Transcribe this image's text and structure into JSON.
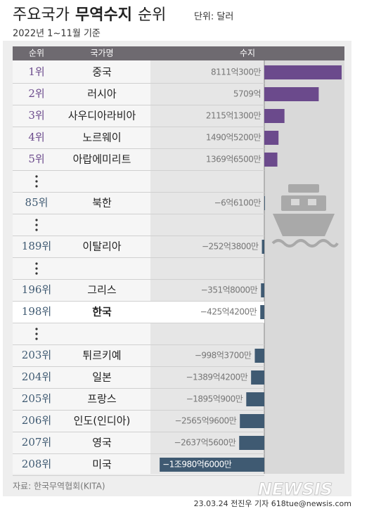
{
  "chart_data": {
    "type": "bar",
    "orientation": "horizontal",
    "title_parts": [
      "주요국가",
      "무역수지",
      "순위"
    ],
    "unit": "단위: 달러",
    "subtitle": "2022년 1~11월 기준",
    "header": [
      "순위",
      "국가명",
      "수지"
    ],
    "ranks": [
      "1위",
      "2위",
      "3위",
      "4위",
      "5위",
      "85위",
      "189위",
      "196위",
      "198위",
      "203위",
      "204위",
      "205위",
      "206위",
      "207위",
      "208위"
    ],
    "categories": [
      "중국",
      "러시아",
      "사우디아라비아",
      "노르웨이",
      "아랍에미리트",
      "북한",
      "이탈리아",
      "그리스",
      "한국",
      "튀르키예",
      "일본",
      "프랑스",
      "인도(인디아)",
      "영국",
      "미국"
    ],
    "values": [
      8111.03,
      5709,
      2115.13,
      1490.52,
      1369.65,
      -6.61,
      -252.38,
      -351.8,
      -425.42,
      -998.37,
      -1389.42,
      -1895.09,
      -2565.96,
      -2637.56,
      -10980.6
    ],
    "value_labels": [
      "8111억300만",
      "5709억",
      "2115억1300만",
      "1490억5200만",
      "1369억6500만",
      "−6억6100만",
      "−252억3800만",
      "−351억8000만",
      "−425억4200만",
      "−998억3700만",
      "−1389억4200만",
      "−1895억900만",
      "−2565억9600만",
      "−2637억5600만",
      "−1조980억6000만"
    ],
    "colors": {
      "positive": "#6b4a8c",
      "negative": "#3f5a72"
    },
    "highlight": "한국",
    "source": "자료: 한국무역협회(KITA)",
    "credit": "23.03.24 전진우 기자 618tue@newsis.com",
    "watermark": "NEWSIS"
  }
}
